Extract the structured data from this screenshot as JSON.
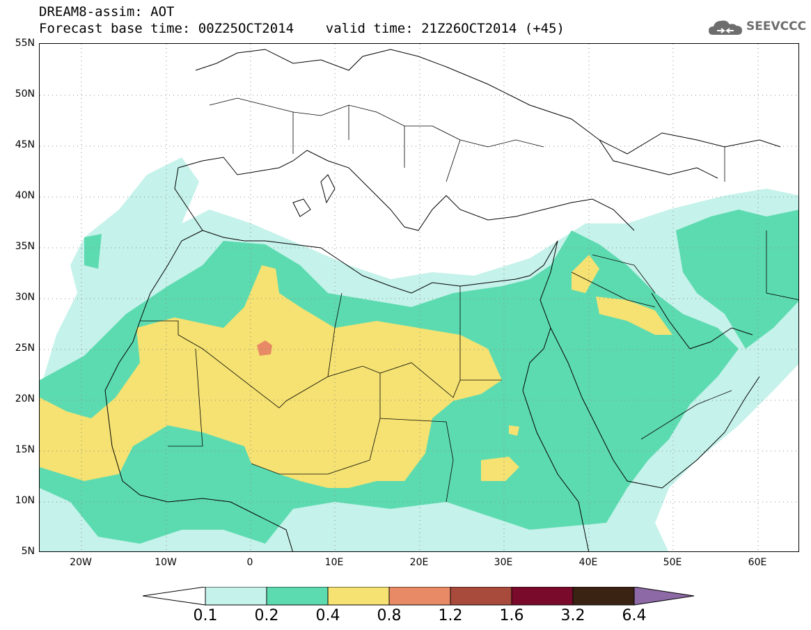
{
  "header": {
    "title_line_1": "DREAM8-assim: AOT",
    "title_line_2": "Forecast base time: 00Z25OCT2014    valid time: 21Z26OCT2014 (+45)"
  },
  "logo": {
    "text": "SEEVCCC",
    "icon": "cloud-icon"
  },
  "map": {
    "lat_labels": [
      "55N",
      "50N",
      "45N",
      "40N",
      "35N",
      "30N",
      "25N",
      "20N",
      "15N",
      "10N",
      "5N"
    ],
    "lon_labels": [
      "20W",
      "10W",
      "0",
      "10E",
      "20E",
      "30E",
      "40E",
      "50E",
      "60E"
    ],
    "extent": {
      "lon_min": -25,
      "lon_max": 65,
      "lat_min": 5,
      "lat_max": 55
    },
    "gridlines": "dotted"
  },
  "legend": {
    "colors": [
      "#ffffff",
      "#c5f2ea",
      "#5ddbb0",
      "#f5e272",
      "#e88a66",
      "#a84a3c",
      "#7a0a2c",
      "#3b2314",
      "#8d6aa6"
    ],
    "labels": [
      "0.1",
      "0.2",
      "0.4",
      "0.8",
      "1.2",
      "1.6",
      "3.2",
      "6.4"
    ]
  }
}
